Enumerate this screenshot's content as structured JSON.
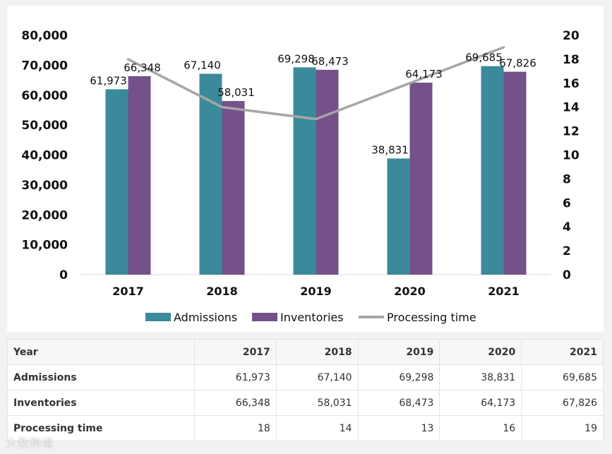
{
  "chart_data": {
    "type": "bar",
    "categories": [
      "2017",
      "2018",
      "2019",
      "2020",
      "2021"
    ],
    "series": [
      {
        "name": "Admissions",
        "type": "bar",
        "axis": "left",
        "color": "#3b8a9b",
        "values": [
          61973,
          67140,
          69298,
          38831,
          69685
        ],
        "labels": [
          "61,973",
          "67,140",
          "69,298",
          "38,831",
          "69,685"
        ]
      },
      {
        "name": "Inventories",
        "type": "bar",
        "axis": "left",
        "color": "#74518a",
        "values": [
          66348,
          58031,
          68473,
          64173,
          67826
        ],
        "labels": [
          "66,348",
          "58,031",
          "68,473",
          "64,173",
          "67,826"
        ]
      },
      {
        "name": "Processing time",
        "type": "line",
        "axis": "right",
        "color": "#a6a6a6",
        "values": [
          18,
          14,
          13,
          16,
          19
        ]
      }
    ],
    "y_left": {
      "min": 0,
      "max": 80000,
      "step": 10000,
      "tick_labels": [
        "0",
        "10,000",
        "20,000",
        "30,000",
        "40,000",
        "50,000",
        "60,000",
        "70,000",
        "80,000"
      ]
    },
    "y_right": {
      "min": 0,
      "max": 20,
      "step": 2,
      "tick_labels": [
        "0",
        "2",
        "4",
        "6",
        "8",
        "10",
        "12",
        "14",
        "16",
        "18",
        "20"
      ]
    },
    "legend": {
      "position": "bottom",
      "items": [
        "Admissions",
        "Inventories",
        "Processing time"
      ]
    },
    "grid": false
  },
  "table": {
    "header": [
      "Year",
      "2017",
      "2018",
      "2019",
      "2020",
      "2021"
    ],
    "rows": [
      {
        "label": "Admissions",
        "cells": [
          "61,973",
          "67,140",
          "69,298",
          "38,831",
          "69,685"
        ]
      },
      {
        "label": "Inventories",
        "cells": [
          "66,348",
          "58,031",
          "68,473",
          "64,173",
          "67,826"
        ]
      },
      {
        "label": "Processing time",
        "cells": [
          "18",
          "14",
          "13",
          "16",
          "19"
        ]
      }
    ]
  },
  "watermark": "大数跨境"
}
